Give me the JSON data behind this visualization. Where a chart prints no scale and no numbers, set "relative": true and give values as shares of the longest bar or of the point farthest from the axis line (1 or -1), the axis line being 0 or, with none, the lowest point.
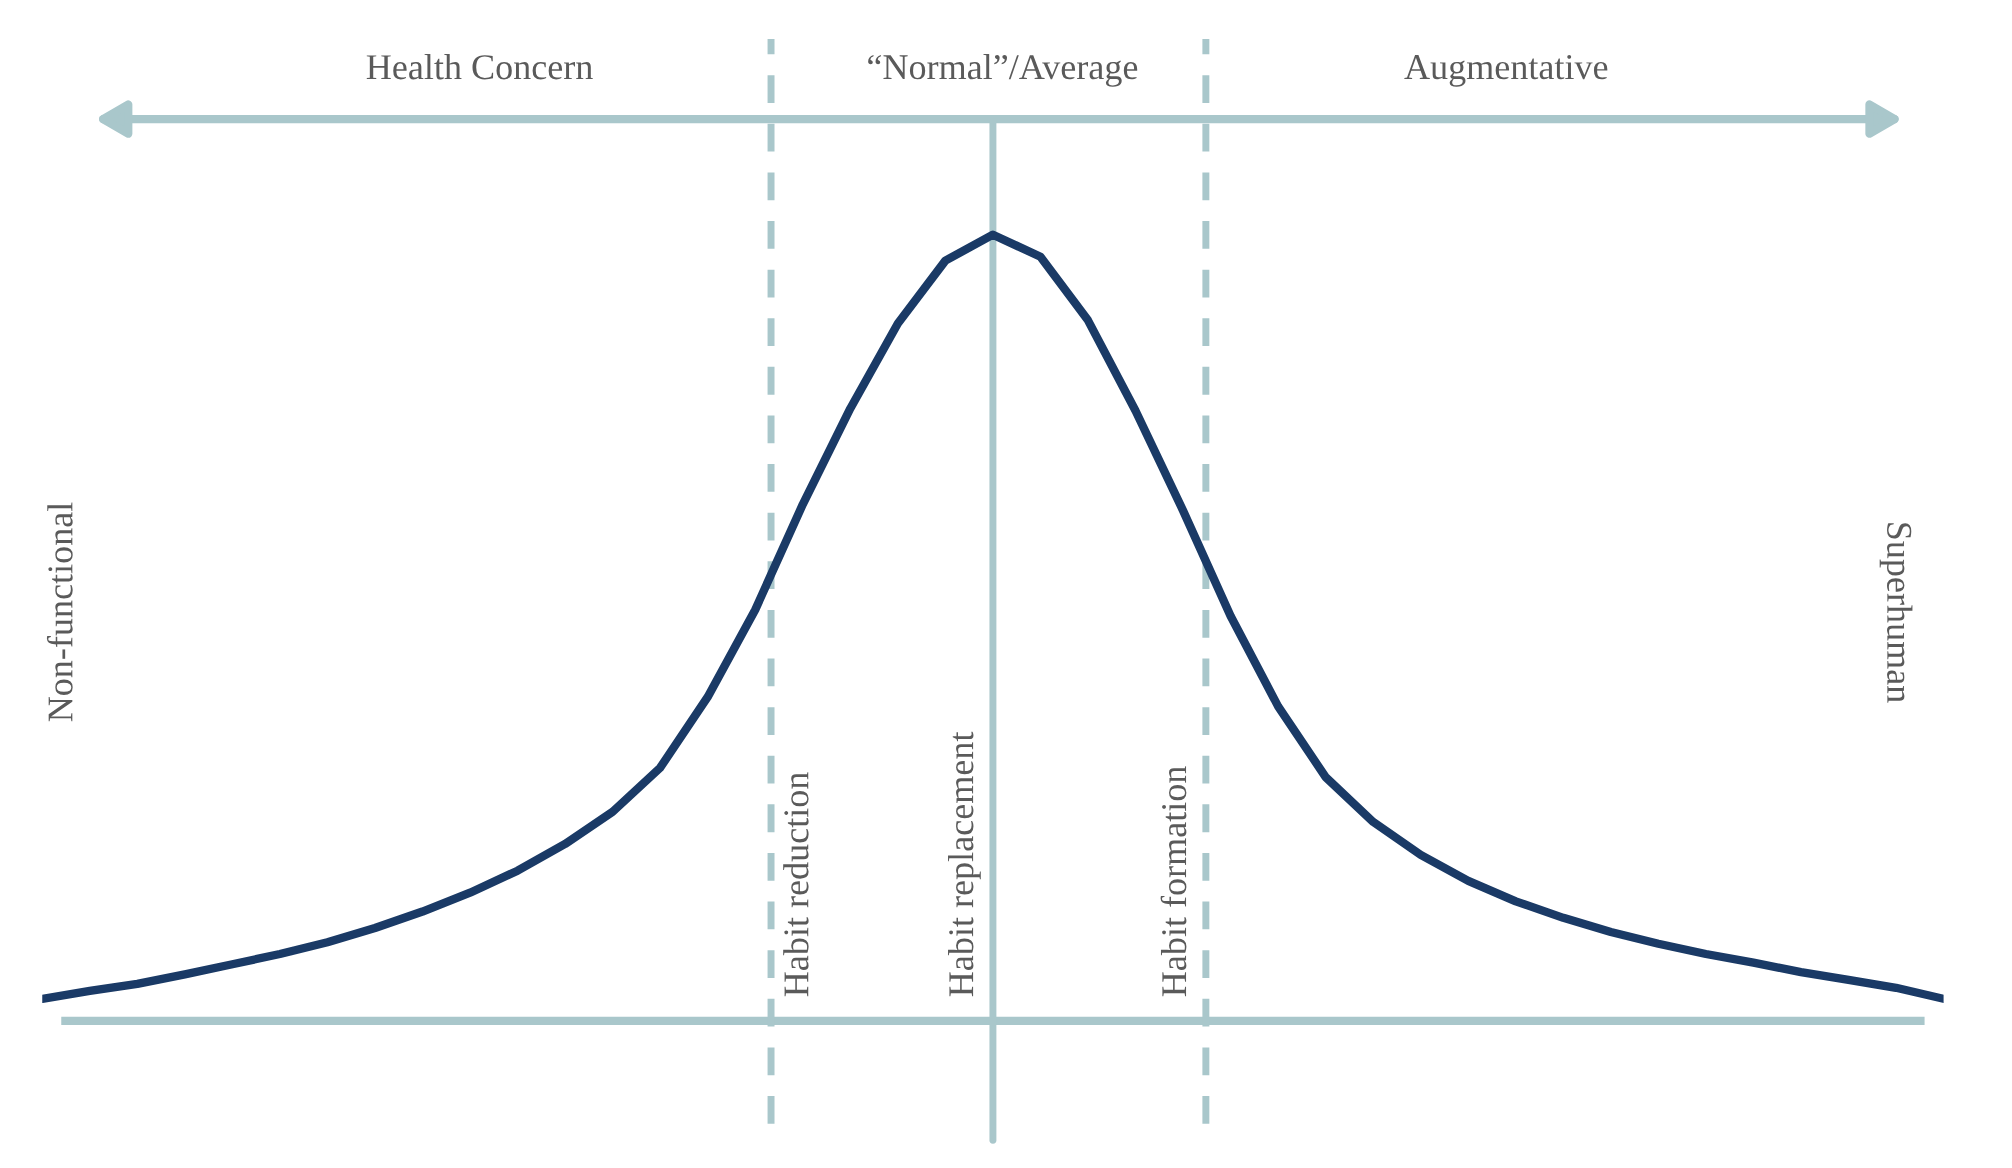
{
  "chart_data": {
    "type": "line",
    "relative": true,
    "categories": [
      null,
      null,
      null,
      null,
      null,
      null,
      null,
      null,
      null,
      null,
      null,
      null,
      null,
      null,
      null,
      null,
      null,
      null,
      null,
      null,
      null,
      null,
      null,
      null,
      null,
      null,
      null,
      null,
      null,
      null,
      null,
      null,
      null,
      null,
      null,
      null,
      null,
      null,
      null,
      null,
      null
    ],
    "series": [
      {
        "color": "#1a3a66",
        "values": [
          0.028,
          0.038,
          0.047,
          0.059,
          0.072,
          0.085,
          0.1,
          0.118,
          0.139,
          0.163,
          0.191,
          0.225,
          0.266,
          0.322,
          0.412,
          0.523,
          0.657,
          0.779,
          0.887,
          0.967,
          1.0,
          0.972,
          0.891,
          0.776,
          0.649,
          0.515,
          0.4,
          0.31,
          0.253,
          0.211,
          0.178,
          0.152,
          0.131,
          0.113,
          0.098,
          0.085,
          0.074,
          0.062,
          0.052,
          0.042,
          0.028
        ]
      }
    ],
    "annotations": [
      "Health Concern",
      "“Normal”/Average",
      "Augmentative",
      "Non-functional",
      "Superhuman",
      "Habit reduction",
      "Habit replacement",
      "Habit formation"
    ],
    "marker": "none",
    "line_style": "solid"
  }
}
